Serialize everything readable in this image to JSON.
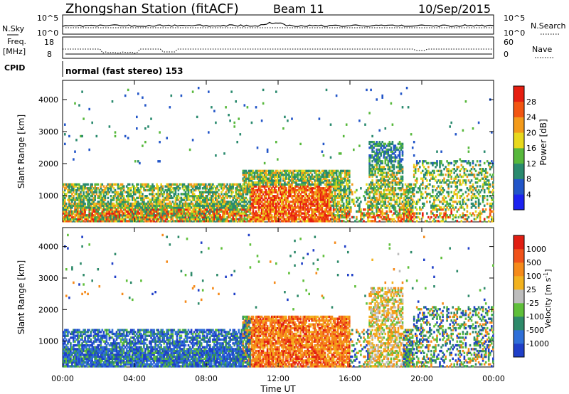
{
  "header": {
    "station": "Zhongshan Station (fitACF)",
    "beam": "Beam 11",
    "date": "10/Sep/2015"
  },
  "top_panels": {
    "nsky_label": "N.Sky",
    "nsky_ticks": [
      "10^5",
      "10^0"
    ],
    "nsearch_label": "N.Search",
    "nsearch_ticks": [
      "10^5",
      "10^0"
    ],
    "freq_label": "Freq.",
    "freq_unit": "[MHz]",
    "freq_ticks": [
      "18",
      "8"
    ],
    "nave_label": "Nave",
    "nave_ticks": [
      "60",
      "0"
    ],
    "cpid_label": "CPID",
    "cpid_text": "normal (fast stereo) 153"
  },
  "chart_data": [
    {
      "type": "heatmap",
      "panel": "power",
      "ylabel": "Slant Range [km]",
      "xlabel": "",
      "yticks": [
        "1000",
        "2000",
        "3000",
        "4000"
      ],
      "ylim": [
        180,
        4600
      ],
      "xlim": [
        0,
        24
      ],
      "colorbar": {
        "label": "Power [dB]",
        "ticks": [
          "4",
          "8",
          "12",
          "16",
          "20",
          "24",
          "28"
        ],
        "colors": [
          "#1c22f0",
          "#2255c8",
          "#2a8a6e",
          "#57b83c",
          "#e8d81c",
          "#f39a1a",
          "#f25511",
          "#e61e10"
        ]
      }
    },
    {
      "type": "heatmap",
      "panel": "velocity",
      "ylabel": "Slant Range [km]",
      "xlabel": "Time UT",
      "yticks": [
        "1000",
        "2000",
        "3000",
        "4000"
      ],
      "xticks": [
        "00:00",
        "04:00",
        "08:00",
        "12:00",
        "16:00",
        "20:00",
        "00:00"
      ],
      "ylim": [
        180,
        4600
      ],
      "xlim": [
        0,
        24
      ],
      "colorbar": {
        "label": "Velocity [m s",
        "label_sup": "-1",
        "label_close": "]",
        "ticks": [
          "1000",
          "500",
          "100",
          "25",
          "-25",
          "-100",
          "-500",
          "-1000"
        ],
        "colors": [
          "#1f3fc8",
          "#2f6fd8",
          "#2e8a6a",
          "#5fbf3a",
          "#bdbdbd",
          "#f2b21f",
          "#f58a1a",
          "#f0521a",
          "#e01e12"
        ]
      }
    }
  ]
}
